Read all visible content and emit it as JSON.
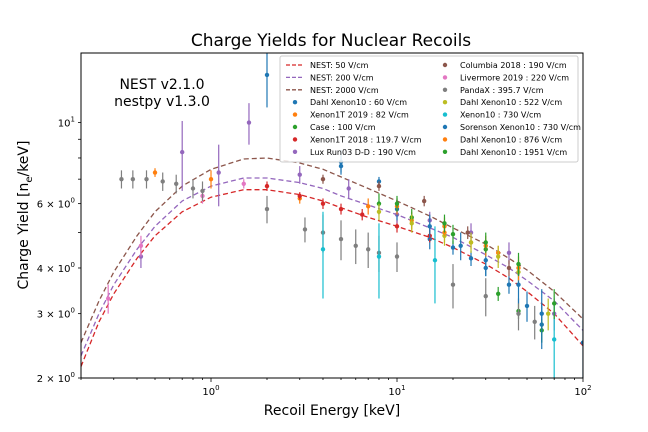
{
  "chart_data": {
    "type": "scatter",
    "title": "Charge Yields for Nuclear Recoils",
    "xlabel": "Recoil Energy [keV]",
    "ylabel_main": "Charge Yield [n",
    "ylabel_sub": "e",
    "ylabel_tail": "/keV]",
    "xscale": "log",
    "yscale": "log",
    "xlim": [
      0.2,
      100
    ],
    "ylim": [
      2.0,
      15.5
    ],
    "x_ticks": [
      {
        "value": 1,
        "base": "10",
        "exp": "0"
      },
      {
        "value": 10,
        "base": "10",
        "exp": "1"
      },
      {
        "value": 100,
        "base": "10",
        "exp": "2"
      }
    ],
    "y_ticks": [
      {
        "value": 2,
        "text": "2 × 10",
        "exp": "0"
      },
      {
        "value": 3,
        "text": "3 × 10",
        "exp": "0"
      },
      {
        "value": 4,
        "text": "4 × 10",
        "exp": "0"
      },
      {
        "value": 6,
        "text": "6 × 10",
        "exp": "0"
      },
      {
        "value": 10,
        "text": "10",
        "exp": "1"
      }
    ],
    "annotation": [
      "NEST v2.1.0",
      "nestpy v1.3.0"
    ],
    "legend_position": "top-right",
    "curves": [
      {
        "name": "NEST: 50 V/cm",
        "color": "#d62728",
        "x": [
          0.2,
          0.25,
          0.3,
          0.4,
          0.5,
          0.7,
          1,
          1.5,
          2,
          3,
          4,
          5,
          7,
          10,
          15,
          20,
          30,
          40,
          50,
          70,
          100
        ],
        "y": [
          2.15,
          2.85,
          3.4,
          4.25,
          4.9,
          5.7,
          6.25,
          6.55,
          6.55,
          6.35,
          6.1,
          5.85,
          5.5,
          5.2,
          4.85,
          4.55,
          4.1,
          3.75,
          3.45,
          3.0,
          2.45
        ]
      },
      {
        "name": "NEST: 200 V/cm",
        "color": "#9467bd",
        "x": [
          0.2,
          0.25,
          0.3,
          0.4,
          0.5,
          0.7,
          1,
          1.5,
          2,
          3,
          4,
          5,
          7,
          10,
          15,
          20,
          30,
          40,
          50,
          70,
          100
        ],
        "y": [
          2.3,
          3.0,
          3.6,
          4.5,
          5.2,
          6.1,
          6.7,
          7.05,
          7.05,
          6.85,
          6.6,
          6.3,
          5.95,
          5.6,
          5.15,
          4.85,
          4.35,
          4.0,
          3.7,
          3.25,
          2.7
        ]
      },
      {
        "name": "NEST: 2000 V/cm",
        "color": "#8c564b",
        "x": [
          0.2,
          0.25,
          0.3,
          0.4,
          0.5,
          0.7,
          1,
          1.5,
          2,
          3,
          4,
          5,
          7,
          10,
          15,
          20,
          30,
          40,
          50,
          70,
          100
        ],
        "y": [
          2.5,
          3.25,
          3.9,
          4.9,
          5.7,
          6.7,
          7.45,
          7.95,
          8.0,
          7.75,
          7.45,
          7.1,
          6.6,
          6.1,
          5.55,
          5.15,
          4.65,
          4.25,
          3.95,
          3.45,
          2.9
        ]
      }
    ],
    "series": [
      {
        "name": "Dahl Xenon10 : 60 V/cm",
        "color": "#1f77b4",
        "points": [
          [
            2.0,
            13.5,
            2.5
          ],
          [
            5.0,
            7.6,
            0.3
          ],
          [
            8.0,
            6.9,
            0.2
          ],
          [
            15.0,
            4.8,
            0.3
          ],
          [
            20.0,
            4.55,
            0.2
          ],
          [
            25.0,
            4.25,
            0.2
          ],
          [
            30.0,
            4.0,
            0.2
          ],
          [
            40.0,
            3.6,
            0.2
          ],
          [
            50.0,
            3.15,
            0.3
          ],
          [
            60.0,
            2.8,
            0.4
          ]
        ]
      },
      {
        "name": "Xenon1T 2019 : 82 V/cm",
        "color": "#ff7f0e",
        "points": [
          [
            0.5,
            7.3,
            0.2
          ],
          [
            1.0,
            7.0,
            0.4
          ],
          [
            3.0,
            6.2,
            0.2
          ],
          [
            7.0,
            5.9,
            0.3
          ],
          [
            12.0,
            5.4,
            0.3
          ],
          [
            18.0,
            5.0,
            0.3
          ],
          [
            25.0,
            4.7,
            0.2
          ],
          [
            35.0,
            4.4,
            0.2
          ]
        ]
      },
      {
        "name": "Case : 100 V/cm",
        "color": "#2ca02c",
        "points": [
          [
            8.0,
            6.0,
            0.4
          ],
          [
            12.0,
            5.5,
            0.3
          ],
          [
            20.0,
            4.95,
            0.3
          ],
          [
            30.0,
            4.5,
            0.2
          ],
          [
            35.0,
            3.4,
            0.15
          ],
          [
            45.0,
            3.05,
            0.15
          ],
          [
            60.0,
            2.7,
            0.2
          ]
        ]
      },
      {
        "name": "Xenon1T 2018 : 119.7 V/cm",
        "color": "#d62728",
        "points": [
          [
            2.0,
            6.7,
            0.2
          ],
          [
            3.0,
            6.3,
            0.15
          ],
          [
            4.0,
            6.0,
            0.2
          ],
          [
            5.0,
            5.8,
            0.2
          ],
          [
            6.5,
            5.6,
            0.2
          ],
          [
            10.0,
            5.2,
            0.2
          ],
          [
            15.0,
            4.9,
            0.2
          ]
        ]
      },
      {
        "name": "Lux Run03 D-D : 190 V/cm",
        "color": "#9467bd",
        "points": [
          [
            0.42,
            4.3,
            0.3
          ],
          [
            0.7,
            8.3,
            1.8
          ],
          [
            1.1,
            7.3,
            1.4
          ],
          [
            1.6,
            10.0,
            1.3
          ],
          [
            3.0,
            7.2,
            0.4
          ],
          [
            5.5,
            6.6,
            0.4
          ],
          [
            10.0,
            5.6,
            0.3
          ],
          [
            15.0,
            5.4,
            0.3
          ],
          [
            25.0,
            5.0,
            0.3
          ],
          [
            40.0,
            4.4,
            0.3
          ],
          [
            70.0,
            3.0,
            0.3
          ]
        ]
      },
      {
        "name": "Columbia 2018 : 190 V/cm",
        "color": "#8c564b",
        "points": [
          [
            4.0,
            7.0,
            0.2
          ],
          [
            8.0,
            6.7,
            0.2
          ],
          [
            14.0,
            6.1,
            0.2
          ],
          [
            24.0,
            5.0,
            0.2
          ],
          [
            40.0,
            4.0,
            0.2
          ]
        ]
      },
      {
        "name": "Livermore 2019 : 220 V/cm",
        "color": "#e377c2",
        "points": [
          [
            0.28,
            3.3,
            0.3
          ],
          [
            0.42,
            4.6,
            0.3
          ],
          [
            0.9,
            6.3,
            0.3
          ],
          [
            1.5,
            6.8,
            0.2
          ]
        ]
      },
      {
        "name": "PandaX : 395.7 V/cm",
        "color": "#7f7f7f",
        "points": [
          [
            0.33,
            7.0,
            0.4
          ],
          [
            0.38,
            7.0,
            0.4
          ],
          [
            0.45,
            7.0,
            0.4
          ],
          [
            0.55,
            6.9,
            0.4
          ],
          [
            0.65,
            6.8,
            0.4
          ],
          [
            0.8,
            6.6,
            0.4
          ],
          [
            0.9,
            6.5,
            0.4
          ],
          [
            2.0,
            5.8,
            0.5
          ],
          [
            3.2,
            5.1,
            0.4
          ],
          [
            4.0,
            5.0,
            0.6
          ],
          [
            5.0,
            4.8,
            0.6
          ],
          [
            6.0,
            4.6,
            0.5
          ],
          [
            7.0,
            4.5,
            0.5
          ],
          [
            8.0,
            4.4,
            0.5
          ],
          [
            10.0,
            4.3,
            0.4
          ],
          [
            20.0,
            3.6,
            0.5
          ],
          [
            30.0,
            3.35,
            0.4
          ],
          [
            45.0,
            3.0,
            0.3
          ],
          [
            55.0,
            2.85,
            0.3
          ]
        ]
      },
      {
        "name": "Dahl Xenon10 : 522 V/cm",
        "color": "#bcbd22",
        "points": [
          [
            8.0,
            5.7,
            0.3
          ],
          [
            12.0,
            5.3,
            0.3
          ],
          [
            18.0,
            4.9,
            0.3
          ],
          [
            25.0,
            4.7,
            0.3
          ],
          [
            35.0,
            4.3,
            0.3
          ],
          [
            45.0,
            3.9,
            0.3
          ],
          [
            65.0,
            3.0,
            0.3
          ]
        ]
      },
      {
        "name": "Xenon10 : 730 V/cm",
        "color": "#17becf",
        "points": [
          [
            4.0,
            4.5,
            1.2
          ],
          [
            8.0,
            4.3,
            1.0
          ],
          [
            16.0,
            4.2,
            1.0
          ],
          [
            70.0,
            2.55,
            0.6
          ]
        ]
      },
      {
        "name": "Sorenson Xenon10 : 730 V/cm",
        "color": "#1f77b4",
        "points": [
          [
            5.0,
            7.8,
            0.6
          ],
          [
            10.0,
            5.8,
            0.4
          ],
          [
            15.0,
            5.2,
            0.4
          ],
          [
            22.0,
            4.6,
            0.4
          ],
          [
            30.0,
            4.2,
            0.4
          ],
          [
            45.0,
            3.6,
            0.4
          ],
          [
            60.0,
            3.0,
            0.5
          ],
          [
            100.0,
            2.5,
            0.5
          ]
        ]
      },
      {
        "name": "Dahl Xenon10 : 876 V/cm",
        "color": "#ff7f0e",
        "points": [
          [
            10.0,
            5.9,
            0.3
          ],
          [
            18.0,
            5.2,
            0.3
          ],
          [
            30.0,
            4.6,
            0.3
          ],
          [
            45.0,
            4.0,
            0.3
          ]
        ]
      },
      {
        "name": "Dahl Xenon10 : 1951 V/cm",
        "color": "#2ca02c",
        "points": [
          [
            10.0,
            6.0,
            0.3
          ],
          [
            18.0,
            5.3,
            0.3
          ],
          [
            30.0,
            4.7,
            0.3
          ],
          [
            45.0,
            4.1,
            0.3
          ],
          [
            70.0,
            3.2,
            0.3
          ]
        ]
      }
    ]
  }
}
